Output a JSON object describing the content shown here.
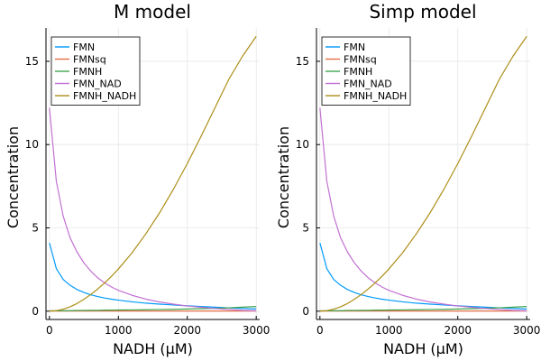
{
  "chart_data": [
    {
      "type": "line",
      "title": "M model",
      "xlabel": "NADH (μM)",
      "ylabel": "Concentration",
      "xlim": [
        -50,
        3050
      ],
      "ylim": [
        -0.5,
        17
      ],
      "xticks": [
        0,
        1000,
        2000,
        3000
      ],
      "xtick_labels": [
        "0",
        "1000",
        "2000",
        "3000"
      ],
      "yticks": [
        0,
        5,
        10,
        15
      ],
      "ytick_labels": [
        "0",
        "5",
        "10",
        "15"
      ],
      "grid": true,
      "legend_position": "top-left",
      "x": [
        0,
        100,
        200,
        300,
        400,
        500,
        600,
        700,
        800,
        900,
        1000,
        1200,
        1400,
        1600,
        1800,
        2000,
        2200,
        2400,
        2600,
        2800,
        3000
      ],
      "series": [
        {
          "name": "FMN",
          "color": "#009AFA",
          "values": [
            4.1,
            2.55,
            1.9,
            1.55,
            1.3,
            1.12,
            0.98,
            0.88,
            0.79,
            0.72,
            0.66,
            0.56,
            0.48,
            0.42,
            0.37,
            0.32,
            0.28,
            0.24,
            0.2,
            0.16,
            0.13
          ]
        },
        {
          "name": "FMNsq",
          "color": "#E36F47",
          "values": [
            0.01,
            0.01,
            0.01,
            0.01,
            0.01,
            0.01,
            0.01,
            0.01,
            0.01,
            0.01,
            0.01,
            0.01,
            0.01,
            0.01,
            0.01,
            0.01,
            0.01,
            0.01,
            0.01,
            0.01,
            0.01
          ]
        },
        {
          "name": "FMNH",
          "color": "#3EA44E",
          "values": [
            0.02,
            0.02,
            0.03,
            0.03,
            0.04,
            0.04,
            0.05,
            0.05,
            0.06,
            0.06,
            0.07,
            0.08,
            0.09,
            0.1,
            0.11,
            0.13,
            0.15,
            0.17,
            0.2,
            0.24,
            0.28
          ]
        },
        {
          "name": "FMN_NAD",
          "color": "#C271D2",
          "values": [
            12.2,
            7.8,
            5.7,
            4.4,
            3.55,
            2.9,
            2.4,
            2.0,
            1.7,
            1.45,
            1.25,
            0.95,
            0.72,
            0.55,
            0.42,
            0.31,
            0.23,
            0.16,
            0.1,
            0.05,
            0.02
          ]
        },
        {
          "name": "FMNH_NADH",
          "color": "#AC8E18",
          "values": [
            0.0,
            0.03,
            0.12,
            0.26,
            0.46,
            0.71,
            1.0,
            1.33,
            1.69,
            2.09,
            2.53,
            3.51,
            4.65,
            5.92,
            7.33,
            8.86,
            10.5,
            12.2,
            13.9,
            15.3,
            16.5
          ]
        }
      ]
    },
    {
      "type": "line",
      "title": "Simp model",
      "xlabel": "NADH (μM)",
      "ylabel": "Concentration",
      "xlim": [
        -50,
        3050
      ],
      "ylim": [
        -0.5,
        17
      ],
      "xticks": [
        0,
        1000,
        2000,
        3000
      ],
      "xtick_labels": [
        "0",
        "1000",
        "2000",
        "3000"
      ],
      "yticks": [
        0,
        5,
        10,
        15
      ],
      "ytick_labels": [
        "0",
        "5",
        "10",
        "15"
      ],
      "grid": true,
      "legend_position": "top-left",
      "x": [
        0,
        100,
        200,
        300,
        400,
        500,
        600,
        700,
        800,
        900,
        1000,
        1200,
        1400,
        1600,
        1800,
        2000,
        2200,
        2400,
        2600,
        2800,
        3000
      ],
      "series": [
        {
          "name": "FMN",
          "color": "#009AFA",
          "values": [
            4.1,
            2.55,
            1.9,
            1.55,
            1.3,
            1.12,
            0.98,
            0.88,
            0.79,
            0.72,
            0.66,
            0.56,
            0.48,
            0.42,
            0.37,
            0.32,
            0.28,
            0.24,
            0.2,
            0.16,
            0.13
          ]
        },
        {
          "name": "FMNsq",
          "color": "#E36F47",
          "values": [
            0.01,
            0.01,
            0.01,
            0.01,
            0.01,
            0.01,
            0.01,
            0.01,
            0.01,
            0.01,
            0.01,
            0.01,
            0.01,
            0.01,
            0.01,
            0.01,
            0.01,
            0.01,
            0.01,
            0.01,
            0.01
          ]
        },
        {
          "name": "FMNH",
          "color": "#3EA44E",
          "values": [
            0.02,
            0.02,
            0.03,
            0.03,
            0.04,
            0.04,
            0.05,
            0.05,
            0.06,
            0.06,
            0.07,
            0.08,
            0.09,
            0.1,
            0.11,
            0.13,
            0.15,
            0.17,
            0.2,
            0.24,
            0.28
          ]
        },
        {
          "name": "FMN_NAD",
          "color": "#C271D2",
          "values": [
            12.2,
            7.8,
            5.7,
            4.4,
            3.55,
            2.9,
            2.4,
            2.0,
            1.7,
            1.45,
            1.25,
            0.95,
            0.72,
            0.55,
            0.42,
            0.31,
            0.23,
            0.16,
            0.1,
            0.05,
            0.02
          ]
        },
        {
          "name": "FMNH_NADH",
          "color": "#AC8E18",
          "values": [
            0.0,
            0.03,
            0.12,
            0.26,
            0.46,
            0.71,
            1.0,
            1.33,
            1.69,
            2.09,
            2.53,
            3.51,
            4.65,
            5.92,
            7.33,
            8.86,
            10.5,
            12.2,
            13.9,
            15.3,
            16.5
          ]
        }
      ]
    }
  ]
}
